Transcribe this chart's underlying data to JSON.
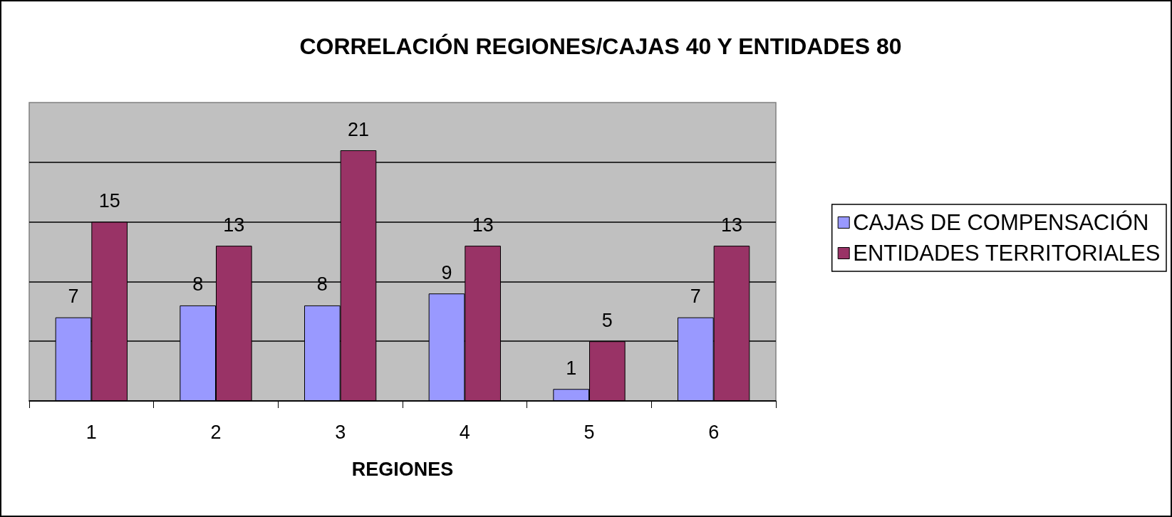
{
  "chart_data": {
    "type": "bar",
    "title": "CORRELACIÓN REGIONES/CAJAS 40 Y ENTIDADES 80",
    "xlabel": "REGIONES",
    "categories": [
      "1",
      "2",
      "3",
      "4",
      "5",
      "6"
    ],
    "series": [
      {
        "name": "CAJAS DE COMPENSACIÓN",
        "color": "#9999ff",
        "values": [
          7,
          8,
          8,
          9,
          1,
          7
        ]
      },
      {
        "name": "ENTIDADES TERRITORIALES",
        "color": "#993366",
        "values": [
          15,
          13,
          21,
          13,
          5,
          13
        ]
      }
    ],
    "ylim": [
      0,
      25
    ],
    "yticks": [
      0,
      {
        "value": 5,
        "label": null
      },
      {
        "value": 10,
        "label": null
      },
      {
        "value": 15,
        "label": null
      },
      {
        "value": 20,
        "label": null
      }
    ],
    "grid": "y",
    "legend": "right",
    "data_labels": true,
    "tick_labels": "x"
  }
}
